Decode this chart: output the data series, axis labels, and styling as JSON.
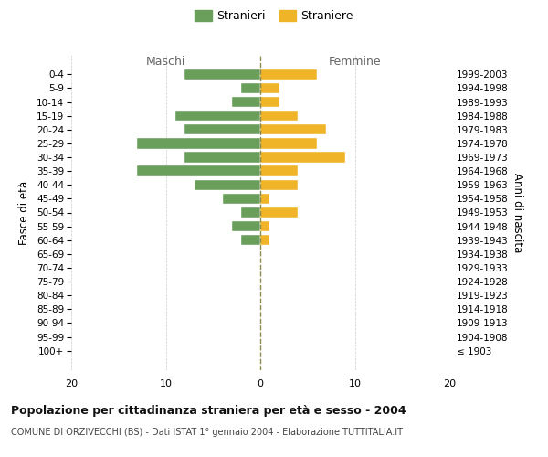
{
  "age_groups": [
    "0-4",
    "5-9",
    "10-14",
    "15-19",
    "20-24",
    "25-29",
    "30-34",
    "35-39",
    "40-44",
    "45-49",
    "50-54",
    "55-59",
    "60-64",
    "65-69",
    "70-74",
    "75-79",
    "80-84",
    "85-89",
    "90-94",
    "95-99",
    "100+"
  ],
  "birth_years": [
    "1999-2003",
    "1994-1998",
    "1989-1993",
    "1984-1988",
    "1979-1983",
    "1974-1978",
    "1969-1973",
    "1964-1968",
    "1959-1963",
    "1954-1958",
    "1949-1953",
    "1944-1948",
    "1939-1943",
    "1934-1938",
    "1929-1933",
    "1924-1928",
    "1919-1923",
    "1914-1918",
    "1909-1913",
    "1904-1908",
    "≤ 1903"
  ],
  "males": [
    8,
    2,
    3,
    9,
    8,
    13,
    8,
    13,
    7,
    4,
    2,
    3,
    2,
    0,
    0,
    0,
    0,
    0,
    0,
    0,
    0
  ],
  "females": [
    6,
    2,
    2,
    4,
    7,
    6,
    9,
    4,
    4,
    1,
    4,
    1,
    1,
    0,
    0,
    0,
    0,
    0,
    0,
    0,
    0
  ],
  "male_color": "#6a9f5b",
  "female_color": "#f0b429",
  "center_line_color": "#8b8b4e",
  "grid_color": "#cccccc",
  "background_color": "#ffffff",
  "title": "Popolazione per cittadinanza straniera per età e sesso - 2004",
  "subtitle": "COMUNE DI ORZIVECCHI (BS) - Dati ISTAT 1° gennaio 2004 - Elaborazione TUTTITALIA.IT",
  "ylabel_left": "Fasce di età",
  "ylabel_right": "Anni di nascita",
  "xlabel_maschi": "Maschi",
  "xlabel_femmine": "Femmine",
  "legend_male": "Stranieri",
  "legend_female": "Straniere",
  "xlim": 20,
  "xticks": [
    -20,
    -10,
    0,
    10,
    20
  ],
  "xticklabels": [
    "20",
    "10",
    "0",
    "10",
    "20"
  ]
}
